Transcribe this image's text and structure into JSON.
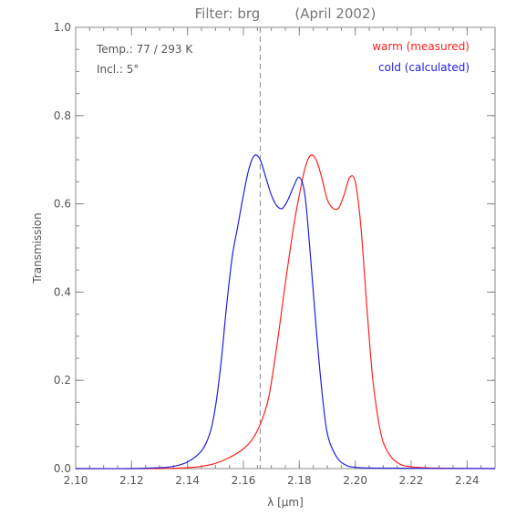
{
  "chart_data": {
    "type": "line",
    "title": "Filter: brg        (April 2002)",
    "xlabel": "λ [μm]",
    "ylabel": "Transmission",
    "xlim": [
      2.1,
      2.25
    ],
    "ylim": [
      0.0,
      1.0
    ],
    "x_ticks": [
      "2.10",
      "2.12",
      "2.14",
      "2.16",
      "2.18",
      "2.20",
      "2.22",
      "2.24"
    ],
    "x_tick_values": [
      2.1,
      2.12,
      2.14,
      2.16,
      2.18,
      2.2,
      2.22,
      2.24
    ],
    "y_ticks": [
      "0.0",
      "0.2",
      "0.4",
      "0.6",
      "0.8",
      "1.0"
    ],
    "y_tick_values": [
      0.0,
      0.2,
      0.4,
      0.6,
      0.8,
      1.0
    ],
    "reference_line_x": 2.166,
    "annotations": [
      "Temp.: 77 / 293 K",
      "Incl.: 5°"
    ],
    "legend_placement": "top-right",
    "series": [
      {
        "name": "warm (measured)",
        "color": "#ff2020",
        "x": [
          2.1,
          2.13,
          2.14,
          2.145,
          2.15,
          2.155,
          2.16,
          2.163,
          2.166,
          2.169,
          2.172,
          2.175,
          2.178,
          2.18,
          2.182,
          2.184,
          2.186,
          2.188,
          2.19,
          2.192,
          2.194,
          2.196,
          2.198,
          2.2,
          2.202,
          2.204,
          2.206,
          2.208,
          2.21,
          2.213,
          2.216,
          2.22,
          2.23,
          2.25
        ],
        "y": [
          0.0,
          0.0,
          0.002,
          0.005,
          0.012,
          0.025,
          0.045,
          0.065,
          0.1,
          0.16,
          0.28,
          0.42,
          0.55,
          0.62,
          0.68,
          0.71,
          0.7,
          0.66,
          0.61,
          0.59,
          0.59,
          0.62,
          0.66,
          0.65,
          0.55,
          0.38,
          0.22,
          0.12,
          0.06,
          0.025,
          0.01,
          0.004,
          0.001,
          0.0
        ]
      },
      {
        "name": "cold (calculated)",
        "color": "#2020dd",
        "x": [
          2.1,
          2.12,
          2.13,
          2.135,
          2.14,
          2.145,
          2.148,
          2.15,
          2.152,
          2.154,
          2.156,
          2.158,
          2.16,
          2.162,
          2.164,
          2.166,
          2.168,
          2.17,
          2.172,
          2.174,
          2.176,
          2.178,
          2.18,
          2.182,
          2.184,
          2.186,
          2.188,
          2.19,
          2.193,
          2.196,
          2.2,
          2.21,
          2.25
        ],
        "y": [
          0.0,
          0.0,
          0.002,
          0.005,
          0.015,
          0.04,
          0.08,
          0.14,
          0.24,
          0.37,
          0.48,
          0.55,
          0.62,
          0.68,
          0.71,
          0.7,
          0.66,
          0.62,
          0.595,
          0.59,
          0.61,
          0.64,
          0.66,
          0.62,
          0.48,
          0.32,
          0.18,
          0.08,
          0.03,
          0.01,
          0.003,
          0.001,
          0.0
        ]
      }
    ]
  }
}
